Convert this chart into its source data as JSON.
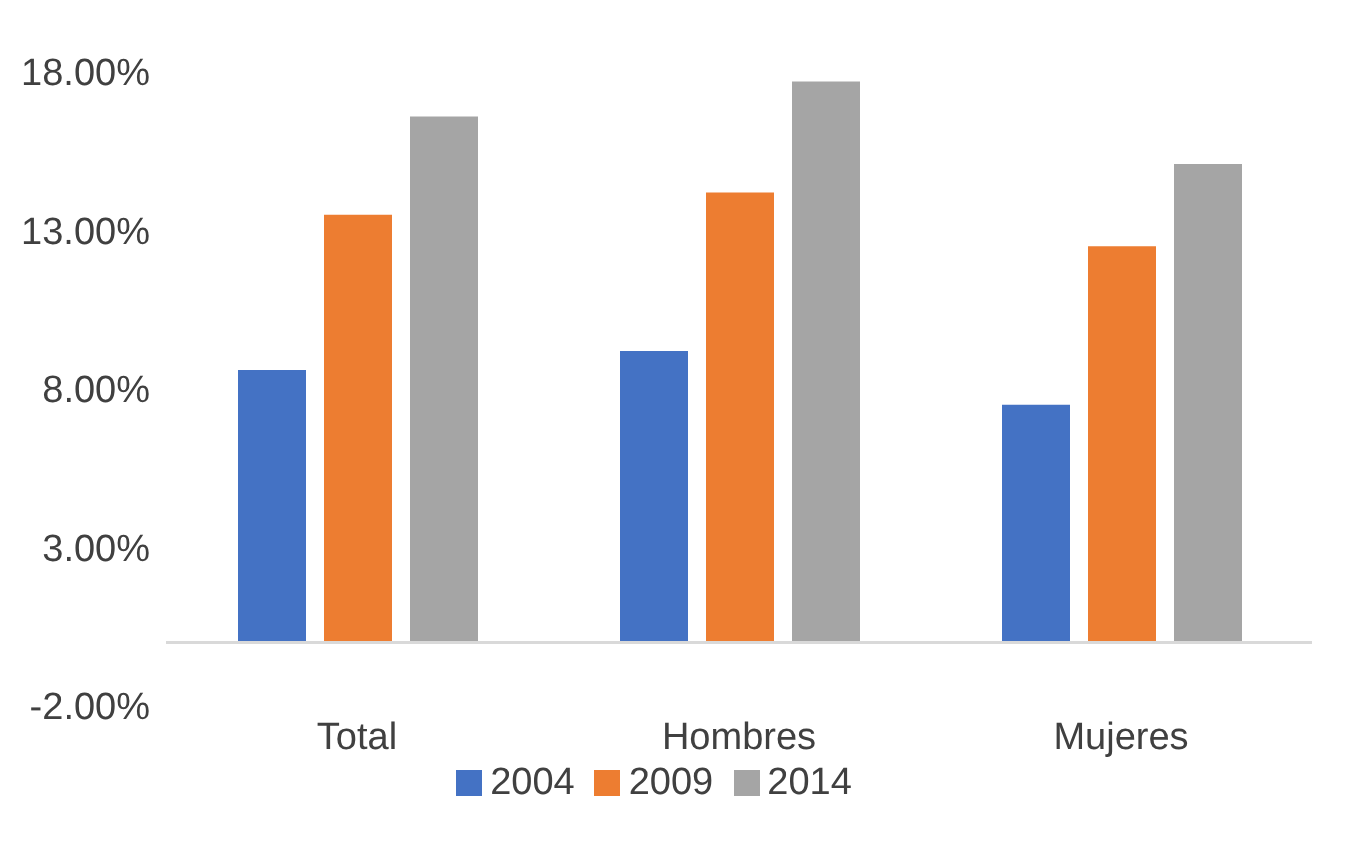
{
  "chart_data": {
    "type": "bar",
    "categories": [
      "Total",
      "Hombres",
      "Mujeres"
    ],
    "series": [
      {
        "name": "2004",
        "color": "#4472c4",
        "values": [
          8.6,
          9.2,
          7.5
        ]
      },
      {
        "name": "2009",
        "color": "#ed7d31",
        "values": [
          13.5,
          14.2,
          12.5
        ]
      },
      {
        "name": "2014",
        "color": "#a5a5a5",
        "values": [
          16.6,
          17.7,
          15.1
        ]
      }
    ],
    "ylim": [
      -2,
      18
    ],
    "yticks": [
      {
        "value": -2,
        "label": "-2.00%"
      },
      {
        "value": 3,
        "label": "3.00%"
      },
      {
        "value": 8,
        "label": "8.00%"
      },
      {
        "value": 13,
        "label": "13.00%"
      },
      {
        "value": 18,
        "label": "18.00%"
      }
    ],
    "legend": "bottom"
  }
}
